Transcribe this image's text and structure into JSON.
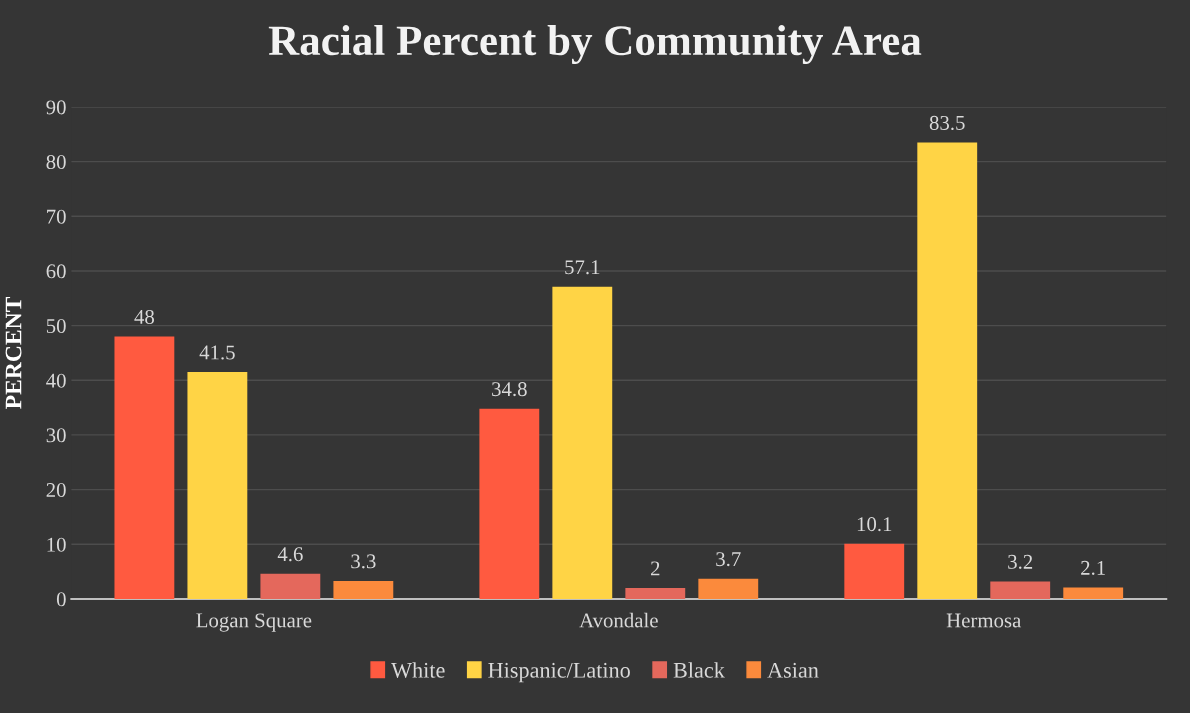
{
  "chart_data": {
    "type": "bar",
    "title": "Racial Percent by Community Area",
    "ylabel": "PERCENT",
    "categories": [
      "Logan Square",
      "Avondale",
      "Hermosa"
    ],
    "series": [
      {
        "name": "White",
        "color": "#ff5a40",
        "values": [
          48,
          34.8,
          10.1
        ]
      },
      {
        "name": "Hispanic/Latino",
        "color": "#ffd445",
        "values": [
          41.5,
          57.1,
          83.5
        ]
      },
      {
        "name": "Black",
        "color": "#e4685c",
        "values": [
          4.6,
          2,
          3.2
        ]
      },
      {
        "name": "Asian",
        "color": "#fb8a3c",
        "values": [
          3.3,
          3.7,
          2.1
        ]
      }
    ],
    "ylim": [
      0,
      90
    ],
    "yticks": [
      0,
      10,
      20,
      30,
      40,
      50,
      60,
      70,
      80,
      90
    ],
    "grid": "y",
    "legend": "bottom",
    "data_labels": true
  }
}
